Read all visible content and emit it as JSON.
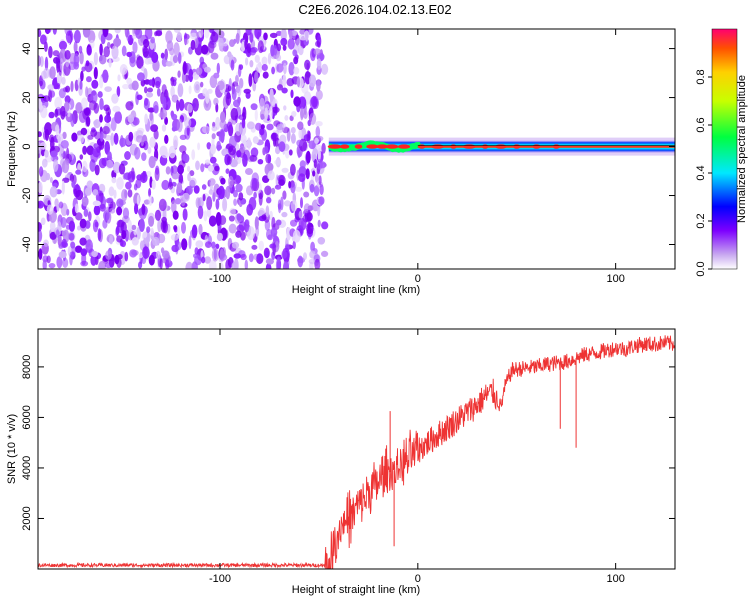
{
  "figure": {
    "title": "C2E6.2026.104.02.13.E02"
  },
  "chart_data": [
    {
      "type": "heatmap",
      "xlabel": "Height of straight line (km)",
      "ylabel": "Frequency (Hz)",
      "xlim": [
        -192,
        130
      ],
      "ylim": [
        -50,
        48
      ],
      "xticks": [
        -100,
        0,
        100
      ],
      "xtick_labels": [
        "-100",
        "0",
        "100"
      ],
      "yticks": [
        -40,
        -20,
        0,
        20,
        40
      ],
      "ytick_labels": [
        "-40",
        "-20",
        "0",
        "20",
        "40"
      ],
      "noise_region_x": [
        -192,
        -47
      ],
      "tone_frequency": 0,
      "tone_start_x": -45,
      "colorbar": {
        "label": "Normalized spectral amplitude",
        "range": [
          0,
          1
        ],
        "ticks": [
          0.0,
          0.2,
          0.4,
          0.6,
          0.8
        ],
        "tick_labels": [
          "0.0",
          "0.2",
          "0.4",
          "0.6",
          "0.8"
        ],
        "colormap": "rainbow"
      },
      "grid": false
    },
    {
      "type": "line",
      "xlabel": "Height of straight line (km)",
      "ylabel": "SNR (10 * v/v)",
      "xlim": [
        -192,
        130
      ],
      "ylim": [
        0,
        9500
      ],
      "xticks": [
        -100,
        0,
        100
      ],
      "xtick_labels": [
        "-100",
        "0",
        "100"
      ],
      "yticks": [
        2000,
        4000,
        6000,
        8000
      ],
      "ytick_labels": [
        "2000",
        "4000",
        "6000",
        "8000"
      ],
      "color": "#ee3333",
      "grid": false,
      "series": [
        {
          "x": [
            -192,
            -150,
            -100,
            -60,
            -47,
            -44,
            -42,
            -40,
            -38,
            -35,
            -30,
            -25,
            -20,
            -17,
            -15,
            -12,
            -10,
            -5,
            0,
            5,
            10,
            15,
            20,
            25,
            30,
            35,
            38,
            40,
            42,
            44,
            46,
            48,
            50,
            55,
            60,
            65,
            70,
            75,
            80,
            85,
            90,
            95,
            100,
            105,
            110,
            115,
            120,
            125,
            130
          ],
          "y": [
            150,
            150,
            150,
            150,
            150,
            300,
            900,
            1500,
            1800,
            2000,
            2500,
            3000,
            3400,
            3700,
            3800,
            3900,
            4000,
            4300,
            4700,
            5000,
            5300,
            5600,
            5900,
            6200,
            6500,
            6900,
            7000,
            6700,
            6400,
            7200,
            7600,
            7900,
            7900,
            7950,
            8000,
            8100,
            8150,
            8200,
            8350,
            8500,
            8550,
            8650,
            8750,
            8700,
            8850,
            8900,
            8900,
            8950,
            8900
          ]
        }
      ],
      "annotations": [
        {
          "x": -14,
          "y": 6250,
          "kind": "spike"
        },
        {
          "x": -12,
          "y": 900,
          "kind": "dip"
        },
        {
          "x": 72,
          "y": 5550,
          "kind": "dip"
        },
        {
          "x": 80,
          "y": 4800,
          "kind": "dip"
        }
      ]
    }
  ]
}
